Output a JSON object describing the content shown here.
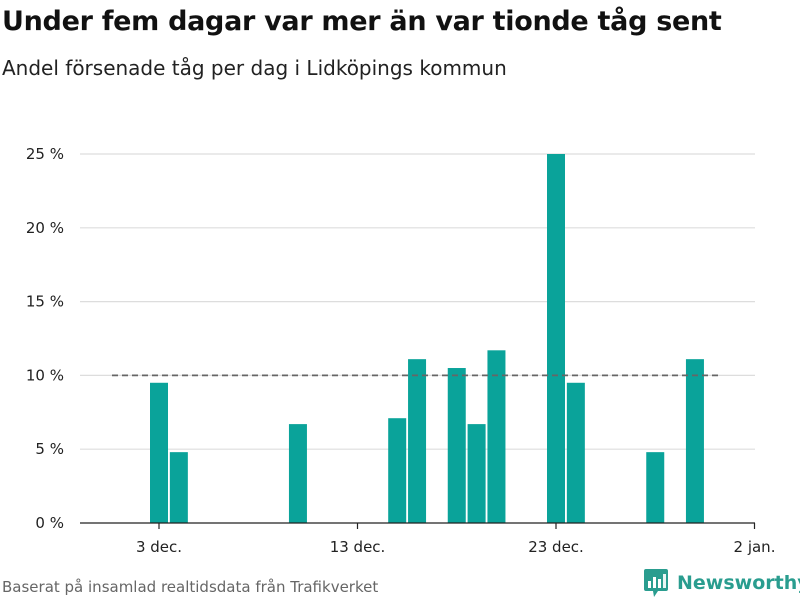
{
  "title": "Under fem dagar var mer än var tionde tåg sent",
  "subtitle": "Andel försenade tåg per dag i Lidköpings kommun",
  "source": "Baserat på insamlad realtidsdata från Trafikverket",
  "brand": {
    "name": "Newsworthy",
    "icon": "newsworthy-logo-icon",
    "color": "#2a9d8f"
  },
  "colors": {
    "bar": "#0aa39a",
    "reference_line": "#666666",
    "grid": "#dddddd"
  },
  "chart_data": {
    "type": "bar",
    "x": [
      "2023-11-30",
      "2023-12-01",
      "2023-12-02",
      "2023-12-03",
      "2023-12-04",
      "2023-12-05",
      "2023-12-06",
      "2023-12-07",
      "2023-12-08",
      "2023-12-09",
      "2023-12-10",
      "2023-12-11",
      "2023-12-12",
      "2023-12-13",
      "2023-12-14",
      "2023-12-15",
      "2023-12-16",
      "2023-12-17",
      "2023-12-18",
      "2023-12-19",
      "2023-12-20",
      "2023-12-21",
      "2023-12-22",
      "2023-12-23",
      "2023-12-24",
      "2023-12-25",
      "2023-12-26",
      "2023-12-27",
      "2023-12-28",
      "2023-12-29",
      "2023-12-30",
      "2023-12-31"
    ],
    "values": [
      0,
      0,
      0,
      9.5,
      4.8,
      0,
      0,
      0,
      0,
      0,
      6.7,
      0,
      0,
      0,
      0,
      7.1,
      11.1,
      0,
      10.5,
      6.7,
      11.7,
      0,
      0,
      25,
      9.5,
      0,
      0,
      0,
      4.8,
      0,
      11.1,
      0
    ],
    "unit": "%",
    "reference_line": 10,
    "ylim": [
      0,
      25
    ],
    "y_ticks": [
      0,
      5,
      10,
      15,
      20,
      25
    ],
    "y_tick_labels": [
      "0 %",
      "5 %",
      "10 %",
      "15 %",
      "20 %",
      "25 %"
    ],
    "x_ticks": [
      "2023-12-03",
      "2023-12-13",
      "2023-12-23",
      "2024-01-02"
    ],
    "x_tick_labels": [
      "3 dec.",
      "13 dec.",
      "23 dec.",
      "2 jan."
    ],
    "grid": true
  }
}
